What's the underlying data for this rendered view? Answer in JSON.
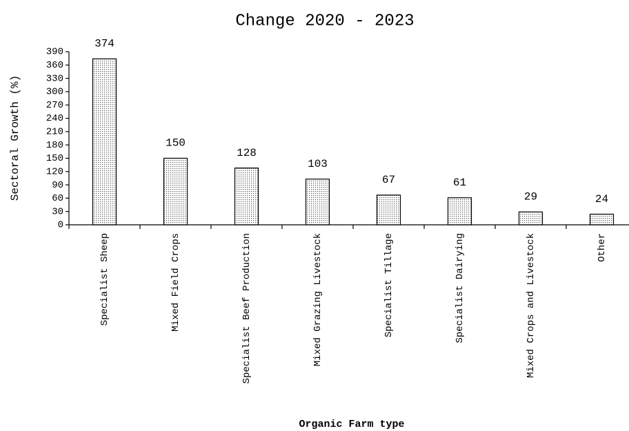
{
  "chart_data": {
    "type": "bar",
    "title": "Change 2020 - 2023",
    "x_label": "Organic Farm type",
    "y_label": "Sectoral Growth (%)",
    "categories": [
      "Specialist Sheep",
      "Mixed Field Crops",
      "Specialist Beef Production",
      "Mixed Grazing Livestock",
      "Specialist Tillage",
      "Specialist Dairying",
      "Mixed Crops and Livestock",
      "Other"
    ],
    "values": [
      374,
      150,
      128,
      103,
      67,
      61,
      29,
      24
    ],
    "color": "#555555",
    "ylim": [
      0,
      390
    ],
    "yticks": [
      0,
      30,
      60,
      90,
      120,
      150,
      180,
      210,
      240,
      270,
      300,
      330,
      360,
      390
    ],
    "grid": false
  }
}
